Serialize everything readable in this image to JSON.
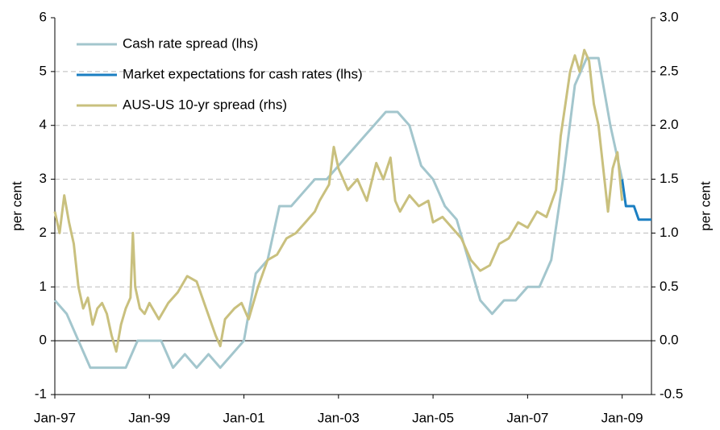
{
  "chart_data": {
    "type": "line",
    "y_label": "per cent",
    "y2_label": "per cent",
    "xlim": [
      1997,
      2009.62
    ],
    "xticks": [
      {
        "value": 1997,
        "label": "Jan-97"
      },
      {
        "value": 1999,
        "label": "Jan-99"
      },
      {
        "value": 2001,
        "label": "Jan-01"
      },
      {
        "value": 2003,
        "label": "Jan-03"
      },
      {
        "value": 2005,
        "label": "Jan-05"
      },
      {
        "value": 2007,
        "label": "Jan-07"
      },
      {
        "value": 2009,
        "label": "Jan-09"
      }
    ],
    "ylim": [
      -1,
      6
    ],
    "yticks": [
      -1,
      0,
      1,
      2,
      3,
      4,
      5,
      6
    ],
    "y2lim": [
      -0.5,
      3.0
    ],
    "y2ticks": [
      -0.5,
      {
        "value": 0,
        "label": "0.0"
      },
      0.5,
      {
        "value": 1,
        "label": "1.0"
      },
      1.5,
      {
        "value": 2,
        "label": "2.0"
      },
      2.5,
      {
        "value": 3,
        "label": "3.0"
      }
    ],
    "grid": true,
    "legend": "upper left",
    "series": [
      {
        "name": "Cash rate spread (lhs)",
        "color": "#a3c6cd",
        "axis": "y",
        "x": [
          1997.0,
          1997.25,
          1997.5,
          1997.75,
          1998.0,
          1998.25,
          1998.5,
          1998.75,
          1999.0,
          1999.25,
          1999.5,
          1999.75,
          2000.0,
          2000.25,
          2000.5,
          2000.75,
          2001.0,
          2001.25,
          2001.5,
          2001.75,
          2002.0,
          2002.25,
          2002.5,
          2002.75,
          2003.0,
          2003.25,
          2003.5,
          2003.75,
          2004.0,
          2004.25,
          2004.5,
          2004.75,
          2005.0,
          2005.25,
          2005.5,
          2005.75,
          2006.0,
          2006.25,
          2006.5,
          2006.75,
          2007.0,
          2007.25,
          2007.5,
          2007.75,
          2008.0,
          2008.25,
          2008.5,
          2008.75,
          2009.0
        ],
        "values": [
          0.75,
          0.5,
          0,
          -0.5,
          -0.5,
          -0.5,
          -0.5,
          0,
          0,
          0,
          -0.5,
          -0.25,
          -0.5,
          -0.25,
          -0.5,
          -0.25,
          0,
          1.25,
          1.5,
          2.5,
          2.5,
          2.75,
          3,
          3,
          3.25,
          3.5,
          3.75,
          4,
          4.25,
          4.25,
          4,
          3.25,
          3,
          2.5,
          2.25,
          1.5,
          0.75,
          0.5,
          0.75,
          0.75,
          1,
          1,
          1.5,
          3,
          4.75,
          5.25,
          5.25,
          4,
          3
        ]
      },
      {
        "name": "Market expectations for cash rates (lhs)",
        "color": "#1b7fc2",
        "axis": "y",
        "x": [
          2009.0,
          2009.08,
          2009.25,
          2009.35,
          2009.62
        ],
        "values": [
          3,
          2.5,
          2.5,
          2.25,
          2.25
        ]
      },
      {
        "name": "AUS-US 10-yr spread (rhs)",
        "color": "#c9c07e",
        "axis": "y2",
        "x": [
          1997.0,
          1997.1,
          1997.2,
          1997.3,
          1997.4,
          1997.5,
          1997.6,
          1997.7,
          1997.8,
          1997.9,
          1998.0,
          1998.1,
          1998.2,
          1998.3,
          1998.4,
          1998.5,
          1998.6,
          1998.65,
          1998.7,
          1998.8,
          1998.9,
          1999.0,
          1999.2,
          1999.4,
          1999.6,
          1999.8,
          2000.0,
          2000.2,
          2000.4,
          2000.5,
          2000.6,
          2000.8,
          2000.95,
          2001.1,
          2001.3,
          2001.5,
          2001.7,
          2001.9,
          2002.1,
          2002.3,
          2002.5,
          2002.6,
          2002.8,
          2002.9,
          2003.0,
          2003.2,
          2003.4,
          2003.6,
          2003.8,
          2003.95,
          2004.1,
          2004.2,
          2004.3,
          2004.5,
          2004.7,
          2004.9,
          2005.0,
          2005.2,
          2005.4,
          2005.6,
          2005.8,
          2006.0,
          2006.2,
          2006.4,
          2006.6,
          2006.8,
          2007.0,
          2007.2,
          2007.4,
          2007.6,
          2007.7,
          2007.8,
          2007.9,
          2008.0,
          2008.1,
          2008.2,
          2008.3,
          2008.4,
          2008.5,
          2008.6,
          2008.7,
          2008.8,
          2008.9,
          2009.0
        ],
        "values": [
          1.2,
          1.0,
          1.35,
          1.1,
          0.9,
          0.5,
          0.3,
          0.4,
          0.15,
          0.3,
          0.35,
          0.25,
          0.05,
          -0.1,
          0.15,
          0.3,
          0.4,
          1.0,
          0.5,
          0.3,
          0.25,
          0.35,
          0.2,
          0.35,
          0.45,
          0.6,
          0.55,
          0.3,
          0.05,
          -0.05,
          0.2,
          0.3,
          0.35,
          0.2,
          0.5,
          0.75,
          0.8,
          0.95,
          1.0,
          1.1,
          1.2,
          1.3,
          1.45,
          1.8,
          1.6,
          1.4,
          1.5,
          1.3,
          1.65,
          1.5,
          1.7,
          1.3,
          1.2,
          1.35,
          1.25,
          1.3,
          1.1,
          1.15,
          1.05,
          0.95,
          0.75,
          0.65,
          0.7,
          0.9,
          0.95,
          1.1,
          1.05,
          1.2,
          1.15,
          1.4,
          1.9,
          2.2,
          2.5,
          2.65,
          2.5,
          2.7,
          2.6,
          2.2,
          2.0,
          1.6,
          1.2,
          1.6,
          1.75,
          1.3
        ]
      }
    ]
  }
}
